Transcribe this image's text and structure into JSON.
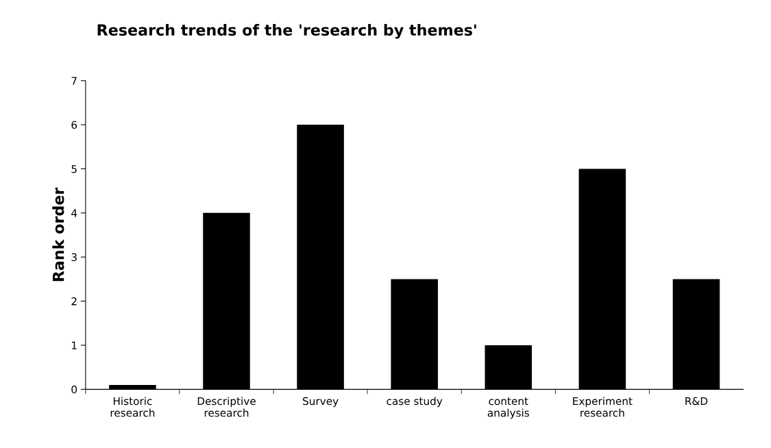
{
  "chart_data": {
    "type": "bar",
    "title": "Research trends of the 'research by themes'",
    "ylabel": "Rank order",
    "categories": [
      "Historic\nresearch",
      "Descriptive\nresearch",
      "Survey",
      "case study",
      "content\nanalysis",
      "Experiment\nresearch",
      "R&D"
    ],
    "values": [
      0.1,
      4,
      6,
      2.5,
      1,
      5,
      2.5
    ],
    "color": "#000000",
    "ylim": [
      0,
      7
    ],
    "yticks": [
      0,
      1,
      2,
      3,
      4,
      5,
      6,
      7
    ],
    "grid": false
  }
}
